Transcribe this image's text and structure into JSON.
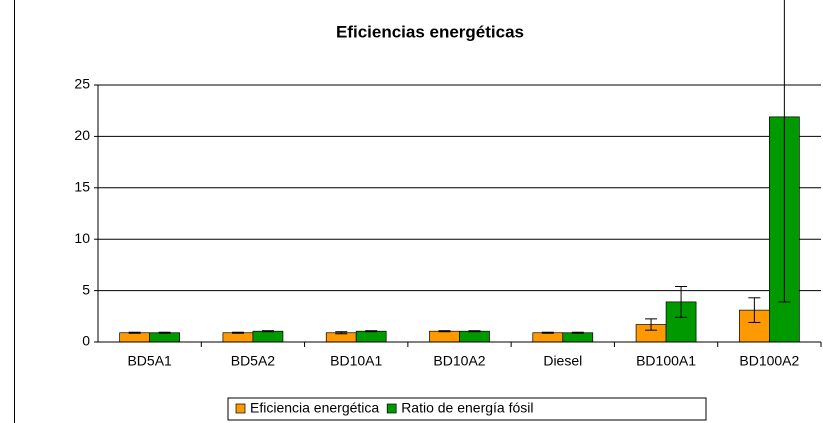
{
  "chart_data": {
    "type": "bar",
    "title": "Eficiencias energéticas",
    "categories": [
      "BD5A1",
      "BD5A2",
      "BD10A1",
      "BD10A2",
      "Diesel",
      "BD100A1",
      "BD100A2"
    ],
    "series": [
      {
        "name": "Eficiencia energética",
        "color": "#ff9900",
        "values": [
          0.9,
          0.9,
          0.9,
          1.05,
          0.9,
          1.7,
          3.1
        ],
        "errors": [
          0.05,
          0.05,
          0.1,
          0.05,
          0.05,
          0.55,
          1.2
        ]
      },
      {
        "name": "Ratio de energía fósil",
        "color": "#009900",
        "values": [
          0.9,
          1.05,
          1.05,
          1.05,
          0.9,
          3.9,
          21.9
        ],
        "errors": [
          0.05,
          0.05,
          0.05,
          0.05,
          0.05,
          1.5,
          18
        ]
      }
    ],
    "ylim": [
      0,
      25
    ],
    "yticks": [
      0,
      5,
      10,
      15,
      20,
      25
    ],
    "grid": true,
    "legend": "bottom"
  }
}
